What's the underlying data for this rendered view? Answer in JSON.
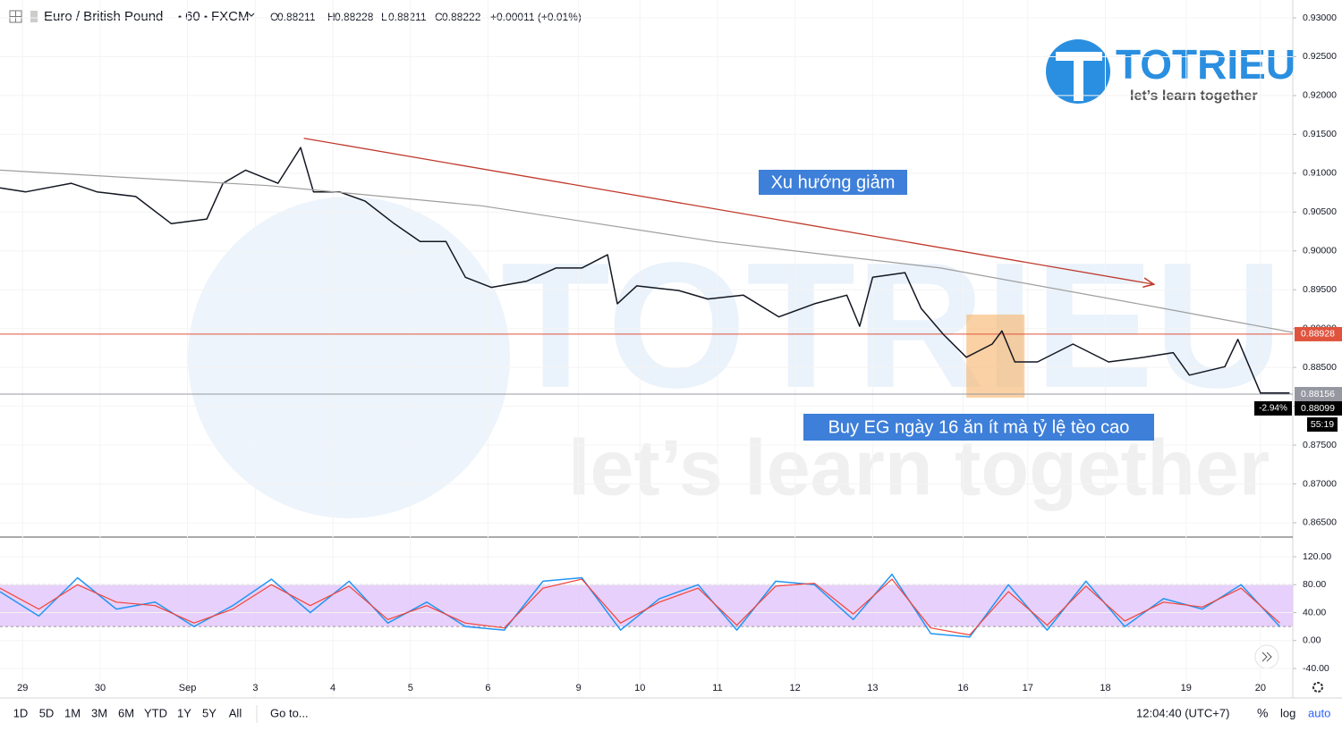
{
  "header": {
    "symbol": "Euro / British Pound",
    "interval": "60",
    "source": "FXCM",
    "ohlc": [
      {
        "label": "O",
        "value": 0.88211
      },
      {
        "label": "H",
        "value": 0.88228
      },
      {
        "label": "L",
        "value": 0.88211
      },
      {
        "label": "C",
        "value": 0.88222
      }
    ],
    "change": "+0.00011 (+0.01%)"
  },
  "chart_data": [
    {
      "type": "line",
      "grid": true,
      "log_scale": false,
      "xlim": [
        0,
        400
      ],
      "xticks": [
        {
          "value": 7,
          "label": "29"
        },
        {
          "value": 31,
          "label": "30"
        },
        {
          "value": 58,
          "label": "Sep"
        },
        {
          "value": 79,
          "label": "3"
        },
        {
          "value": 103,
          "label": "4"
        },
        {
          "value": 127,
          "label": "5"
        },
        {
          "value": 151,
          "label": "6"
        },
        {
          "value": 179,
          "label": "9"
        },
        {
          "value": 198,
          "label": "10"
        },
        {
          "value": 222,
          "label": "11"
        },
        {
          "value": 246,
          "label": "12"
        },
        {
          "value": 270,
          "label": "13"
        },
        {
          "value": 298,
          "label": "16"
        },
        {
          "value": 318,
          "label": "17"
        },
        {
          "value": 342,
          "label": "18"
        },
        {
          "value": 367,
          "label": "19"
        },
        {
          "value": 390,
          "label": "20"
        }
      ],
      "ylim": [
        0.86327,
        0.9323
      ],
      "yticks": [
        {
          "value": 0.93,
          "label": "0.93000"
        },
        {
          "value": 0.925,
          "label": "0.92500"
        },
        {
          "value": 0.92,
          "label": "0.92000"
        },
        {
          "value": 0.915,
          "label": "0.91500"
        },
        {
          "value": 0.91,
          "label": "0.91000"
        },
        {
          "value": 0.905,
          "label": "0.90500"
        },
        {
          "value": 0.9,
          "label": "0.90000"
        },
        {
          "value": 0.895,
          "label": "0.89500"
        },
        {
          "value": 0.89,
          "label": "0.89000"
        },
        {
          "value": 0.885,
          "label": "0.88500"
        },
        {
          "value": 0.88,
          "label": "0.88000"
        },
        {
          "value": 0.875,
          "label": "0.87500"
        },
        {
          "value": 0.87,
          "label": "0.87000"
        },
        {
          "value": 0.865,
          "label": "0.86500"
        }
      ],
      "series": [
        {
          "color": "#131722",
          "x": [
            0,
            8,
            22,
            30,
            42,
            53,
            64,
            69,
            76,
            86,
            93,
            97,
            105,
            113,
            122,
            130,
            138,
            144,
            152,
            163,
            172,
            180,
            188,
            191,
            197,
            210,
            219,
            230,
            241,
            252,
            262,
            266,
            270,
            280,
            285,
            292,
            299,
            307,
            310,
            314,
            321,
            332,
            343,
            354,
            363,
            368,
            379,
            383,
            390,
            399
          ],
          "values": [
            0.9081,
            0.9076,
            0.9087,
            0.9076,
            0.907,
            0.9035,
            0.9041,
            0.9087,
            0.9104,
            0.9087,
            0.9133,
            0.9076,
            0.9076,
            0.9064,
            0.9035,
            0.9012,
            0.9012,
            0.8966,
            0.8953,
            0.8961,
            0.8978,
            0.8978,
            0.8995,
            0.8932,
            0.8955,
            0.8949,
            0.8938,
            0.8943,
            0.8915,
            0.8932,
            0.8943,
            0.8903,
            0.8966,
            0.8972,
            0.8926,
            0.8892,
            0.8863,
            0.888,
            0.8897,
            0.8857,
            0.8857,
            0.888,
            0.8857,
            0.8863,
            0.8869,
            0.884,
            0.8851,
            0.8886,
            0.8817,
            0.8817
          ]
        },
        {
          "color": "#9e9e9e",
          "x": [
            0,
            83,
            149,
            221,
            291,
            360,
            400
          ],
          "values": [
            0.9104,
            0.9084,
            0.9058,
            0.9012,
            0.8978,
            0.8926,
            0.8895
          ]
        }
      ],
      "trendline": {
        "color": "#c0392b",
        "x": [
          94,
          357
        ],
        "y": [
          0.9145,
          0.8957
        ]
      },
      "highlight": {
        "color": "#f7b267",
        "x": [
          299,
          317
        ],
        "y": [
          0.8811,
          0.8918
        ]
      },
      "price_lines": [
        {
          "value": 0.88928,
          "color": "#e0533d"
        },
        {
          "value": 0.88156,
          "color": "#9598a1"
        }
      ],
      "last_price": {
        "value": 0.88099,
        "change": "-2.94%",
        "countdown": "55:19"
      },
      "annotations": [
        "Xu hướng giảm",
        "Buy EG ngày 16 ăn ít mà tỷ lệ tèo cao"
      ]
    },
    {
      "type": "line",
      "grid": true,
      "log_scale": false,
      "xlim": [
        0,
        400
      ],
      "ylim": [
        -81,
        147
      ],
      "yticks": [
        {
          "value": 120,
          "label": "120.00"
        },
        {
          "value": 80,
          "label": "80.00"
        },
        {
          "value": 40,
          "label": "40.00"
        },
        {
          "value": 0,
          "label": "0.00"
        },
        {
          "value": -40,
          "label": "-40.00"
        }
      ],
      "band": [
        20,
        80
      ],
      "band_color": "#e1c4fa",
      "series": [
        {
          "color": "#2196f3",
          "x": [
            0,
            12,
            24,
            36,
            48,
            60,
            72,
            84,
            96,
            108,
            120,
            132,
            144,
            156,
            168,
            180,
            192,
            204,
            216,
            228,
            240,
            252,
            264,
            276,
            288,
            300,
            312,
            324,
            336,
            348,
            360,
            372,
            384,
            396
          ],
          "values": [
            70,
            35,
            90,
            45,
            55,
            20,
            50,
            88,
            40,
            85,
            25,
            55,
            20,
            15,
            85,
            90,
            15,
            60,
            80,
            15,
            85,
            80,
            30,
            95,
            10,
            5,
            80,
            15,
            85,
            20,
            60,
            45,
            80,
            20
          ]
        },
        {
          "color": "#f44336",
          "x": [
            0,
            12,
            24,
            36,
            48,
            60,
            72,
            84,
            96,
            108,
            120,
            132,
            144,
            156,
            168,
            180,
            192,
            204,
            216,
            228,
            240,
            252,
            264,
            276,
            288,
            300,
            312,
            324,
            336,
            348,
            360,
            372,
            384,
            396
          ],
          "values": [
            75,
            45,
            80,
            55,
            50,
            25,
            45,
            80,
            50,
            78,
            30,
            50,
            25,
            18,
            75,
            88,
            25,
            55,
            75,
            22,
            78,
            82,
            38,
            88,
            18,
            8,
            70,
            22,
            78,
            28,
            55,
            48,
            75,
            25
          ]
        }
      ]
    }
  ],
  "logo": {
    "name": "TOTRIEU",
    "tagline": "let’s learn together"
  },
  "toolbar": {
    "ranges": [
      "1D",
      "5D",
      "1M",
      "3M",
      "6M",
      "YTD",
      "1Y",
      "5Y",
      "All"
    ],
    "goto": "Go to...",
    "time": "12:04:40 (UTC+7)",
    "percent": "%",
    "log": "log",
    "auto": "auto"
  }
}
